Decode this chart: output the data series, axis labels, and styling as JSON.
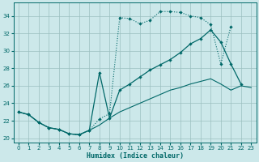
{
  "xlabel": "Humidex (Indice chaleur)",
  "bg_color": "#cce8ea",
  "grid_color": "#9bbfbf",
  "line_color": "#006868",
  "xlim": [
    -0.5,
    23.5
  ],
  "ylim": [
    19.5,
    35.5
  ],
  "xticks": [
    0,
    1,
    2,
    3,
    4,
    5,
    6,
    7,
    8,
    9,
    10,
    11,
    12,
    13,
    14,
    15,
    16,
    17,
    18,
    19,
    20,
    21,
    22,
    23
  ],
  "yticks": [
    20,
    22,
    24,
    26,
    28,
    30,
    32,
    34
  ],
  "curve_upper_x": [
    0,
    1,
    2,
    3,
    4,
    5,
    6,
    7,
    8,
    9,
    10,
    11,
    12,
    13,
    14,
    15,
    16,
    17,
    18,
    19,
    20,
    21
  ],
  "curve_upper_y": [
    23.0,
    22.7,
    21.8,
    21.2,
    21.0,
    20.5,
    20.4,
    20.9,
    22.2,
    22.8,
    33.8,
    33.7,
    33.1,
    33.5,
    34.5,
    34.5,
    34.4,
    34.0,
    33.8,
    33.0,
    28.5,
    32.8
  ],
  "curve_mid_x": [
    0,
    1,
    2,
    3,
    4,
    5,
    6,
    7,
    8,
    9,
    10,
    11,
    12,
    13,
    14,
    15,
    16,
    17,
    18,
    19,
    20,
    21,
    22
  ],
  "curve_mid_y": [
    23.0,
    22.7,
    21.8,
    21.2,
    21.0,
    20.5,
    20.4,
    20.9,
    27.5,
    22.3,
    25.5,
    26.2,
    27.0,
    27.8,
    28.4,
    29.0,
    29.8,
    30.8,
    31.4,
    32.4,
    31.0,
    28.5,
    26.2
  ],
  "curve_lower_x": [
    0,
    1,
    2,
    3,
    4,
    5,
    6,
    7,
    8,
    9,
    10,
    11,
    12,
    13,
    14,
    15,
    16,
    17,
    18,
    19,
    20,
    21,
    22,
    23
  ],
  "curve_lower_y": [
    23.0,
    22.7,
    21.8,
    21.2,
    21.0,
    20.5,
    20.4,
    20.9,
    21.5,
    22.3,
    23.0,
    23.5,
    24.0,
    24.5,
    25.0,
    25.5,
    25.8,
    26.2,
    26.5,
    26.8,
    26.2,
    25.5,
    26.0,
    25.8
  ]
}
